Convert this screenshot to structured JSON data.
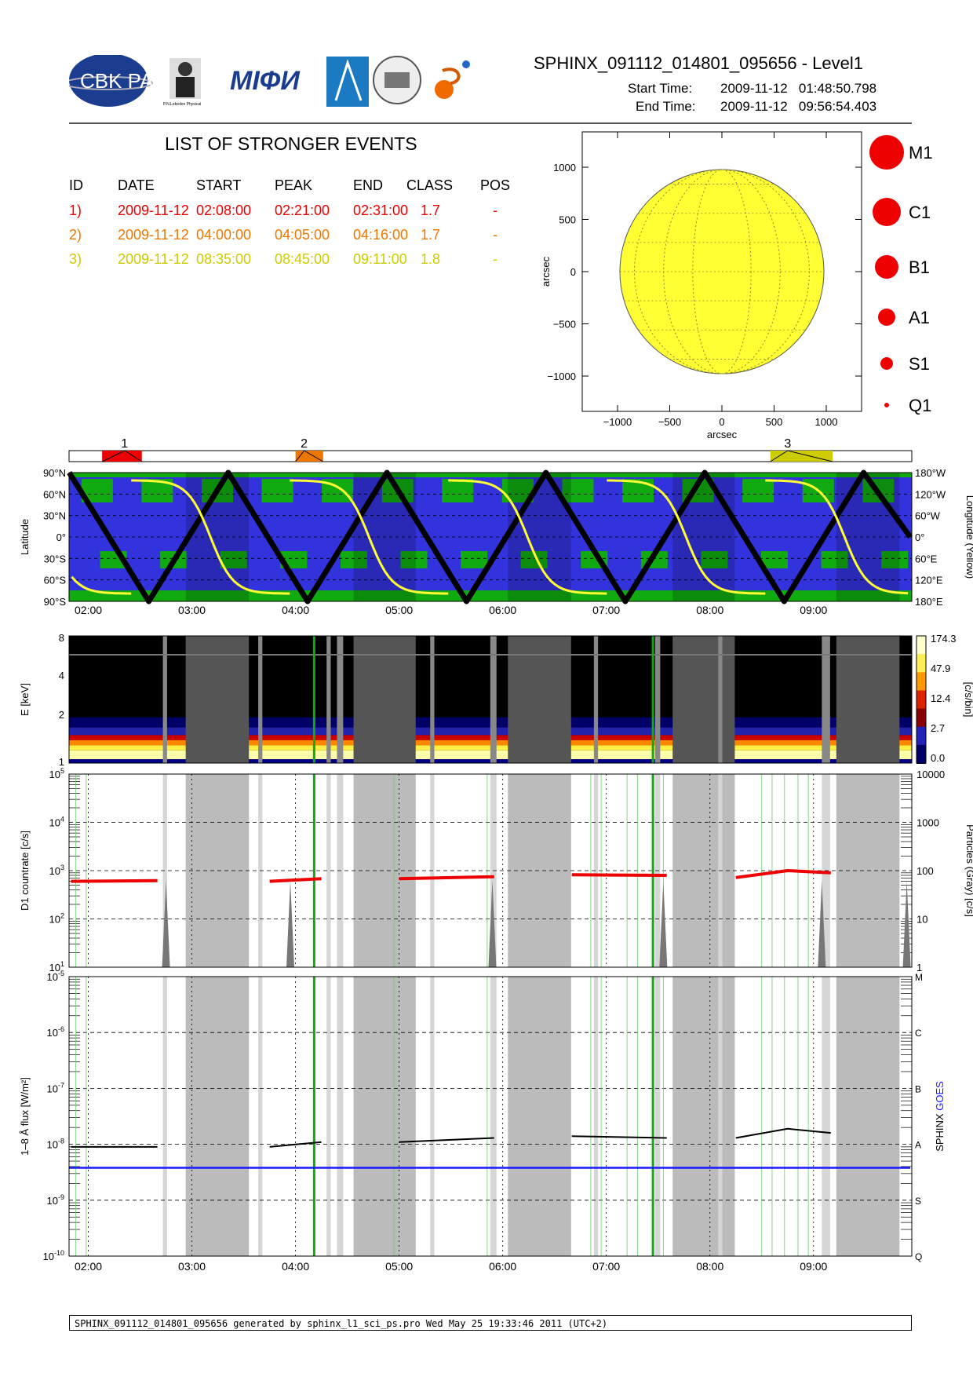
{
  "header": {
    "title": "SPHINX_091112_014801_095656 - Level1",
    "start_label": "Start Time:",
    "start_value": "2009-11-12   01:48:50.798",
    "end_label": "End Time:",
    "end_value": "2009-11-12   09:56:54.403",
    "logos": [
      "CBK PAN",
      "P.N. Lebedev Physical Institute of the Russian Academy of Science",
      "MIFI",
      "logo-4",
      "logo-5",
      "logo-6"
    ]
  },
  "events": {
    "title": "LIST OF STRONGER EVENTS",
    "columns": [
      "ID",
      "DATE",
      "START",
      "PEAK",
      "END",
      "CLASS",
      "POS"
    ],
    "rows": [
      {
        "id": "1)",
        "date": "2009-11-12",
        "start": "02:08:00",
        "peak": "02:21:00",
        "end": "02:31:00",
        "class": "1.7",
        "pos": "-",
        "color": "#ee0000"
      },
      {
        "id": "2)",
        "date": "2009-11-12",
        "start": "04:00:00",
        "peak": "04:05:00",
        "end": "04:16:00",
        "class": "1.7",
        "pos": "-",
        "color": "#ee7700"
      },
      {
        "id": "3)",
        "date": "2009-11-12",
        "start": "08:35:00",
        "peak": "08:45:00",
        "end": "09:11:00",
        "class": "1.8",
        "pos": "-",
        "color": "#cccc00"
      }
    ]
  },
  "sun_map": {
    "x_ticks": [
      "−1000",
      "−500",
      "0",
      "500",
      "1000"
    ],
    "y_ticks": [
      "1000",
      "500",
      "0",
      "−500",
      "−1000"
    ],
    "xlabel": "arcsec",
    "ylabel": "arcsec",
    "disk_color": "#ffff33"
  },
  "size_legend": [
    "M1",
    "C1",
    "B1",
    "A1",
    "S1",
    "Q1"
  ],
  "timeline": {
    "event_labels": [
      "1",
      "2",
      "3"
    ],
    "time_ticks": [
      "02:00",
      "03:00",
      "04:00",
      "05:00",
      "06:00",
      "07:00",
      "08:00",
      "09:00"
    ]
  },
  "orbit_panel": {
    "lat_ticks": [
      "90°N",
      "60°N",
      "30°N",
      "0°",
      "30°S",
      "60°S",
      "90°S"
    ],
    "lon_ticks": [
      "180°W",
      "120°W",
      "60°W",
      "0°",
      "60°E",
      "120°E",
      "180°E"
    ],
    "ylabel_left": "Latitude",
    "ylabel_right": "Longitude (Yellow)"
  },
  "spectrum_panel": {
    "y_ticks": [
      "8",
      "4",
      "2",
      "1"
    ],
    "ylabel": "E [keV]",
    "colorbar_ticks": [
      "174.3",
      "47.9",
      "12.4",
      "2.7",
      "0.0"
    ],
    "colorbar_label": "[c/s/bin]"
  },
  "countrate_panel": {
    "y_ticks_left": [
      "10^5",
      "10^4",
      "10^3",
      "10^2",
      "10^1"
    ],
    "y_ticks_right": [
      "10000",
      "1000",
      "100",
      "10",
      "1"
    ],
    "ylabel_left": "D1 countrate [c/s]",
    "ylabel_right": "Particles (Gray) [c/s]"
  },
  "flux_panel": {
    "y_ticks_left": [
      "10^-5",
      "10^-6",
      "10^-7",
      "10^-8",
      "10^-9",
      "10^-10"
    ],
    "class_ticks": [
      "M",
      "C",
      "B",
      "A",
      "S",
      "Q"
    ],
    "ylabel_left": "1–8 Å flux [W/m²]",
    "legend_sphinx": "SPHINX",
    "legend_goes": "GOES",
    "goes_color": "#1a1aff"
  },
  "footer": "SPHINX_091112_014801_095656 generated by sphinx_l1_sci_ps.pro Wed May 25 19:33:46 2011 (UTC+2)",
  "chart_data": [
    {
      "type": "table",
      "title": "LIST OF STRONGER EVENTS",
      "columns": [
        "ID",
        "DATE",
        "START",
        "PEAK",
        "END",
        "CLASS",
        "POS"
      ],
      "rows": [
        [
          "1)",
          "2009-11-12",
          "02:08:00",
          "02:21:00",
          "02:31:00",
          "1.7",
          "-"
        ],
        [
          "2)",
          "2009-11-12",
          "04:00:00",
          "04:05:00",
          "04:16:00",
          "1.7",
          "-"
        ],
        [
          "3)",
          "2009-11-12",
          "08:35:00",
          "08:45:00",
          "09:11:00",
          "1.8",
          "-"
        ]
      ]
    },
    {
      "type": "line",
      "title": "",
      "xlabel": "",
      "ylabel": "Latitude",
      "xlim": [
        "01:48:50",
        "09:56:54"
      ],
      "ylim": [
        -90,
        90
      ],
      "series": [
        {
          "name": "",
          "x": [
            "01:49",
            "02:35",
            "03:21",
            "04:07",
            "04:53",
            "05:39",
            "06:25",
            "07:11",
            "07:57",
            "08:43",
            "09:29",
            "09:56"
          ],
          "values": [
            90,
            -90,
            90,
            -90,
            90,
            -90,
            90,
            -90,
            90,
            -90,
            90,
            0
          ]
        }
      ]
    },
    {
      "type": "heatmap",
      "ylabel": "E [keV]",
      "ylim": [
        1,
        8
      ],
      "colorbar_range": [
        0.0,
        174.3
      ],
      "colorbar_label": "[c/s/bin]"
    },
    {
      "type": "line",
      "ylabel": "D1 countrate [c/s]",
      "ylim": [
        10,
        100000
      ],
      "yscale": "log",
      "series": [
        {
          "name": "",
          "x": [
            "01:50",
            "02:40",
            "03:45",
            "04:15",
            "05:00",
            "05:55",
            "06:40",
            "07:35",
            "08:15",
            "08:45",
            "09:10"
          ],
          "values": [
            600,
            620,
            600,
            680,
            680,
            750,
            820,
            800,
            720,
            1000,
            900
          ]
        }
      ]
    },
    {
      "type": "line",
      "ylabel": "1–8 Å flux [W/m²]",
      "ylim": [
        1e-10,
        1e-05
      ],
      "yscale": "log",
      "series": [
        {
          "name": "SPHINX",
          "x": [
            "01:50",
            "02:40",
            "03:45",
            "04:15",
            "05:00",
            "05:55",
            "06:40",
            "07:35",
            "08:15",
            "08:45",
            "09:10"
          ],
          "values": [
            9e-09,
            9e-09,
            9e-09,
            1.1e-08,
            1.1e-08,
            1.3e-08,
            1.4e-08,
            1.3e-08,
            1.3e-08,
            1.9e-08,
            1.6e-08
          ]
        },
        {
          "name": "GOES",
          "x": [
            "01:49",
            "09:56"
          ],
          "values": [
            3.8e-09,
            3.8e-09
          ]
        }
      ]
    }
  ]
}
